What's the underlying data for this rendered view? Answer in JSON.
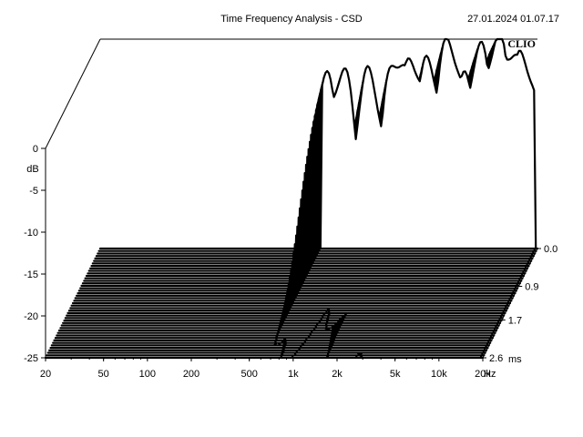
{
  "header": {
    "title": "Time Frequency Analysis - CSD",
    "datetime": "27.01.2024 01.07.17",
    "brand": "CLIO"
  },
  "chart_data": {
    "type": "waterfall",
    "title": "Time Frequency Analysis - CSD",
    "ylabel": "dB",
    "y_ticks": [
      0,
      -5,
      -10,
      -15,
      -20,
      -25
    ],
    "y_tick_labels": [
      "0",
      "-5",
      "-10",
      "-15",
      "-20",
      "-25"
    ],
    "ylim": [
      -25,
      0
    ],
    "x_scale": "log",
    "xlim": [
      20,
      20000
    ],
    "x_ticks": [
      20,
      50,
      100,
      200,
      500,
      1000,
      2000,
      5000,
      10000,
      20000
    ],
    "x_tick_labels": [
      "20",
      "50",
      "100",
      "200",
      "500",
      "1k",
      "2k",
      "5k",
      "10k",
      "20k"
    ],
    "x_unit": "Hz",
    "z_ticks": [
      0.0,
      0.9,
      1.7,
      2.6
    ],
    "z_tick_labels": [
      "0.0",
      "0.9",
      "1.7",
      "2.6"
    ],
    "z_unit": "ms",
    "zlim": [
      0,
      2.6
    ],
    "slice_count": 45,
    "response_start_hz": 650,
    "peaks": [
      {
        "f": 700,
        "db": -5.0,
        "decay": 1.1
      },
      {
        "f": 900,
        "db": -4.0,
        "decay": 1.3
      },
      {
        "f": 1400,
        "db": -4.5,
        "decay": 0.9
      },
      {
        "f": 2200,
        "db": -2.0,
        "decay": 1.6
      },
      {
        "f": 2800,
        "db": -2.5,
        "decay": 1.2
      },
      {
        "f": 3600,
        "db": -3.0,
        "decay": 1.4
      },
      {
        "f": 5000,
        "db": -0.5,
        "decay": 2.0
      },
      {
        "f": 6500,
        "db": -5.0,
        "decay": 0.9
      },
      {
        "f": 8000,
        "db": -1.5,
        "decay": 1.7
      },
      {
        "f": 10500,
        "db": 0.0,
        "decay": 2.3
      },
      {
        "f": 13000,
        "db": -1.0,
        "decay": 2.0
      },
      {
        "f": 16000,
        "db": -2.0,
        "decay": 2.1
      },
      {
        "f": 18500,
        "db": -10.0,
        "decay": 1.0
      }
    ],
    "floor_db": -25,
    "colors": {
      "ink": "#000000",
      "background": "#ffffff"
    }
  }
}
